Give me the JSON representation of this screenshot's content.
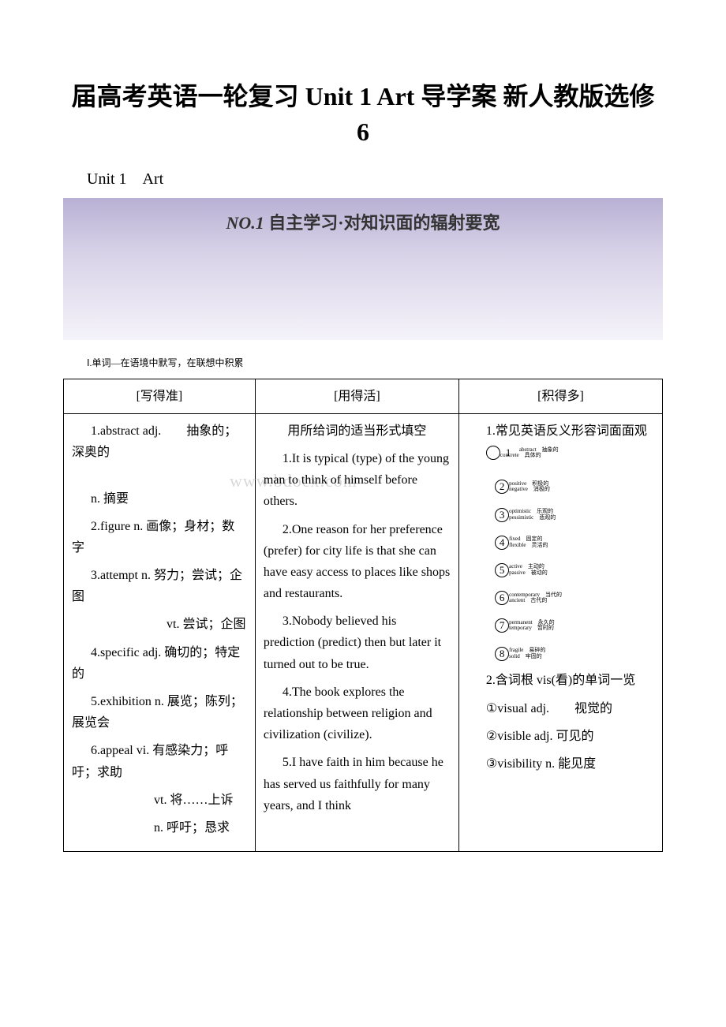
{
  "document": {
    "title": "届高考英语一轮复习 Unit 1 Art 导学案 新人教版选修 6",
    "subtitle": "Unit 1　Art",
    "banner_label": "NO.1",
    "banner_text": "自主学习·对知识面的辐射要宽",
    "section_label": "Ⅰ.单词—在语境中默写，在联想中积累",
    "watermark": "www.bdocx.com"
  },
  "table": {
    "headers": [
      "[写得准]",
      "[用得活]",
      "[积得多]"
    ],
    "col1": {
      "items": [
        "1.abstract adj.　　抽象的；深奥的",
        "n. 摘要",
        "2.figure n. 画像；身材；数字",
        "3.attempt n. 努力；尝试；企图",
        "　　　　　　vt. 尝试；企图",
        "4.specific adj. 确切的；特定的",
        "5.exhibition n. 展览；陈列；展览会",
        "6.appeal vi. 有感染力；呼吁；求助",
        "　　　　　vt. 将……上诉",
        "　　　　　n. 呼吁；恳求"
      ]
    },
    "col2": {
      "intro": "用所给词的适当形式填空",
      "items": [
        "1.It is typical (type) of the young man to think of himself before others.",
        "2.One reason for her preference (prefer) for city life is that she can have easy access to places like shops and restaurants.",
        "3.Nobody believed his prediction (predict) then but later it turned out to be true.",
        "4.The book explores the relationship between religion and civilization (civilize).",
        "5.I have faith in him because he has served us faithfully for many years, and I think"
      ]
    },
    "col3": {
      "heading1": "1.常见英语反义形容词面面观",
      "pairs": [
        {
          "num": "1",
          "a": "abstract",
          "b": "concrete",
          "ca": "抽象的",
          "cb": "具体的"
        },
        {
          "num": "2",
          "a": "positive",
          "b": "negative",
          "ca": "积极的",
          "cb": "消极的"
        },
        {
          "num": "3",
          "a": "optimistic",
          "b": "pessimistic",
          "ca": "乐观的",
          "cb": "悲观的"
        },
        {
          "num": "4",
          "a": "fixed",
          "b": "flexible",
          "ca": "固定的",
          "cb": "灵活的"
        },
        {
          "num": "5",
          "a": "active",
          "b": "passive",
          "ca": "主动的",
          "cb": "被动的"
        },
        {
          "num": "6",
          "a": "contemporary",
          "b": "ancient",
          "ca": "当代的",
          "cb": "古代的"
        },
        {
          "num": "7",
          "a": "permanent",
          "b": "temporary",
          "ca": "永久的",
          "cb": "暂时的"
        },
        {
          "num": "8",
          "a": "fragile",
          "b": "solid",
          "ca": "易碎的",
          "cb": "牢固的"
        }
      ],
      "heading2": "2.含词根 vis(看)的单词一览",
      "vis_items": [
        "①visual adj.　　视觉的",
        "②visible adj. 可见的",
        "③visibility n. 能见度"
      ]
    }
  }
}
